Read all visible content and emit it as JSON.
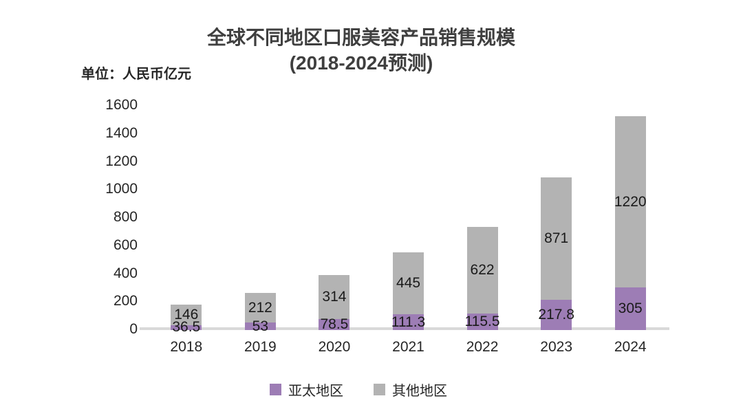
{
  "title": {
    "line1": "全球不同地区口服美容产品销售规模",
    "line2": "(2018-2024预测)"
  },
  "unit_label": "单位：人民币亿元",
  "colors": {
    "apac": "#9d7db5",
    "other": "#b3b3b3",
    "baseline": "#d9d9d9",
    "title_text": "#3f3f3f",
    "label_text": "#1a1a1a"
  },
  "chart_data": {
    "type": "bar",
    "stacked": true,
    "title": "全球不同地区口服美容产品销售规模 (2018-2024预测)",
    "unit": "单位：人民币亿元",
    "categories": [
      "2018",
      "2019",
      "2020",
      "2021",
      "2022",
      "2023",
      "2024"
    ],
    "series": [
      {
        "name": "亚太地区",
        "color": "#9d7db5",
        "values": [
          36.5,
          53,
          78.5,
          111.3,
          115.5,
          217.8,
          305
        ],
        "labels": [
          "36.5",
          "53",
          "78.5",
          "111.3",
          "115.5",
          "217.8",
          "305"
        ]
      },
      {
        "name": "其他地区",
        "color": "#b3b3b3",
        "values": [
          146,
          212,
          314,
          445,
          622,
          871,
          1220
        ],
        "labels": [
          "146",
          "212",
          "314",
          "445",
          "622",
          "871",
          "1220"
        ]
      }
    ],
    "totals": [
      182.5,
      265,
      392.5,
      556.3,
      737.5,
      1088.8,
      1525
    ],
    "ylim": [
      0,
      1600
    ],
    "yticks": [
      0,
      200,
      400,
      600,
      800,
      1000,
      1200,
      1400,
      1600
    ],
    "grid": false,
    "legend_position": "bottom"
  }
}
